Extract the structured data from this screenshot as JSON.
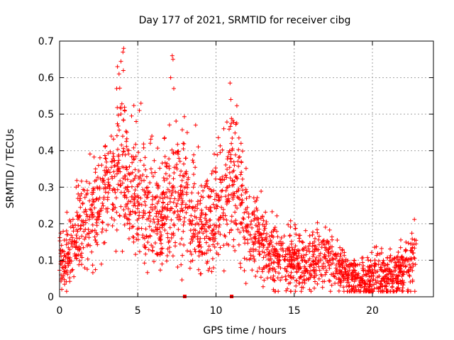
{
  "chart_data": {
    "type": "scatter",
    "title": "Day 177 of 2021, SRMTID for receiver cibg",
    "xlabel": "GPS time / hours",
    "ylabel": "SRMTID / TECUs",
    "xlim": [
      0,
      23.9
    ],
    "ylim": [
      0,
      0.7
    ],
    "xticks": [
      0,
      5,
      10,
      15,
      20
    ],
    "yticks": [
      0,
      0.1,
      0.2,
      0.3,
      0.4,
      0.5,
      0.6,
      0.7
    ],
    "grid": true,
    "marker": "+",
    "color": "#ff0000",
    "trend": [
      [
        0.0,
        0.1
      ],
      [
        0.5,
        0.11
      ],
      [
        1.0,
        0.15
      ],
      [
        1.5,
        0.18
      ],
      [
        2.0,
        0.21
      ],
      [
        2.5,
        0.24
      ],
      [
        3.0,
        0.29
      ],
      [
        3.5,
        0.33
      ],
      [
        4.0,
        0.38
      ],
      [
        4.5,
        0.31
      ],
      [
        5.0,
        0.27
      ],
      [
        5.5,
        0.22
      ],
      [
        6.0,
        0.21
      ],
      [
        6.5,
        0.22
      ],
      [
        7.0,
        0.27
      ],
      [
        7.5,
        0.28
      ],
      [
        8.0,
        0.27
      ],
      [
        8.5,
        0.23
      ],
      [
        9.0,
        0.2
      ],
      [
        9.5,
        0.21
      ],
      [
        10.0,
        0.24
      ],
      [
        10.5,
        0.29
      ],
      [
        11.0,
        0.33
      ],
      [
        11.5,
        0.26
      ],
      [
        12.0,
        0.2
      ],
      [
        12.5,
        0.16
      ],
      [
        13.0,
        0.14
      ],
      [
        13.5,
        0.12
      ],
      [
        14.0,
        0.11
      ],
      [
        14.5,
        0.1
      ],
      [
        15.0,
        0.1
      ],
      [
        15.5,
        0.1
      ],
      [
        16.0,
        0.1
      ],
      [
        16.5,
        0.11
      ],
      [
        17.0,
        0.1
      ],
      [
        17.5,
        0.09
      ],
      [
        18.0,
        0.07
      ],
      [
        18.5,
        0.05
      ],
      [
        19.0,
        0.05
      ],
      [
        19.5,
        0.05
      ],
      [
        20.0,
        0.05
      ],
      [
        20.5,
        0.06
      ],
      [
        21.0,
        0.06
      ],
      [
        21.5,
        0.06
      ],
      [
        22.0,
        0.07
      ],
      [
        22.5,
        0.1
      ],
      [
        22.8,
        0.12
      ]
    ],
    "peaks": [
      {
        "x": 4.1,
        "y": 0.68
      },
      {
        "x": 4.05,
        "y": 0.67
      },
      {
        "x": 3.7,
        "y": 0.63
      },
      {
        "x": 3.8,
        "y": 0.61
      },
      {
        "x": 3.65,
        "y": 0.57
      },
      {
        "x": 7.2,
        "y": 0.66
      },
      {
        "x": 7.25,
        "y": 0.65
      },
      {
        "x": 7.1,
        "y": 0.6
      },
      {
        "x": 7.3,
        "y": 0.57
      },
      {
        "x": 5.2,
        "y": 0.53
      },
      {
        "x": 5.1,
        "y": 0.51
      },
      {
        "x": 4.9,
        "y": 0.48
      },
      {
        "x": 10.9,
        "y": 0.585
      },
      {
        "x": 10.95,
        "y": 0.54
      },
      {
        "x": 8.7,
        "y": 0.47
      },
      {
        "x": 5.9,
        "y": 0.44
      },
      {
        "x": 4.3,
        "y": 0.45
      },
      {
        "x": 10.5,
        "y": 0.46
      },
      {
        "x": 11.6,
        "y": 0.42
      },
      {
        "x": 7.9,
        "y": 0.42
      },
      {
        "x": 2.3,
        "y": 0.35
      },
      {
        "x": 3.3,
        "y": 0.44
      }
    ],
    "zero_markers": [
      8.0,
      11.0
    ]
  }
}
